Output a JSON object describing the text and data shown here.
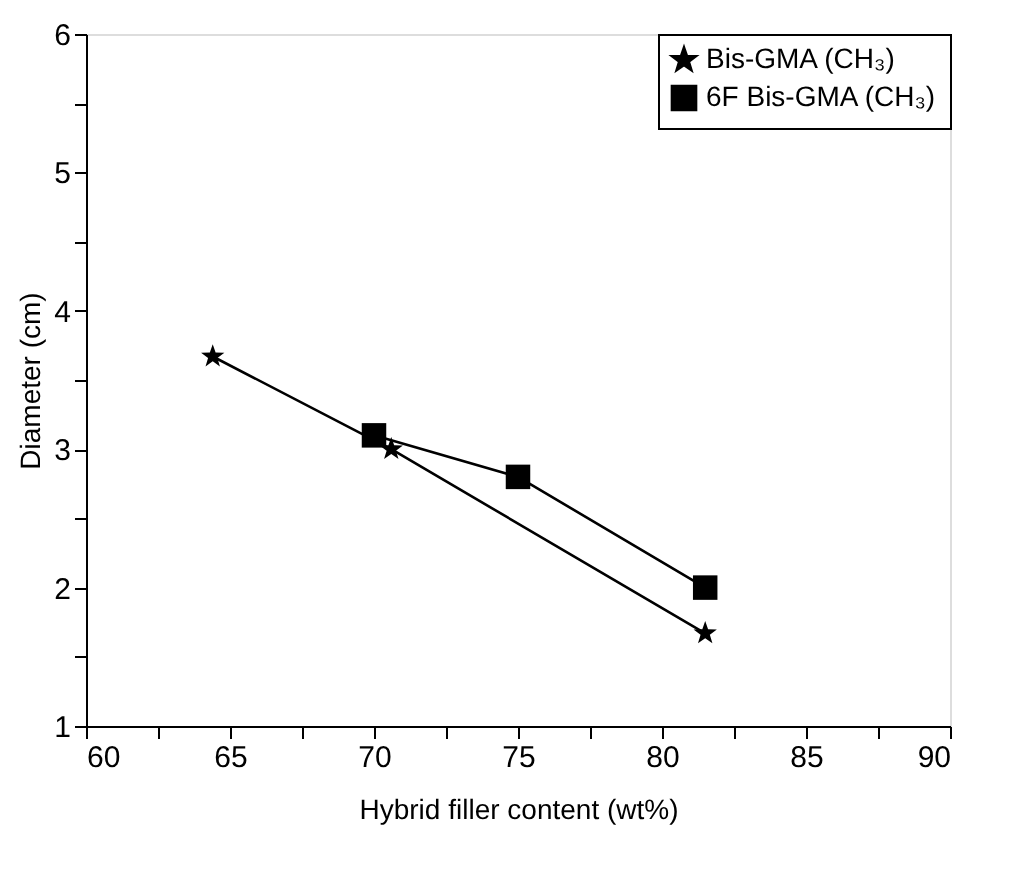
{
  "chart_data": {
    "type": "line",
    "xlabel": "Hybrid filler content (wt%)",
    "ylabel": "Diameter (cm)",
    "xlim": [
      60,
      90
    ],
    "ylim": [
      1,
      6
    ],
    "xticks": [
      60,
      {
        "value": 62.5,
        "label": null
      },
      65,
      {
        "value": 67.5,
        "label": null
      },
      70,
      {
        "value": 72.5,
        "label": null
      },
      75,
      {
        "value": 77.5,
        "label": null
      },
      80,
      {
        "value": 82.5,
        "label": null
      },
      85,
      {
        "value": 87.5,
        "label": null
      },
      90
    ],
    "yticks": [
      1,
      {
        "value": 1.5,
        "label": null
      },
      2,
      {
        "value": 2.5,
        "label": null
      },
      3,
      {
        "value": 3.5,
        "label": null
      },
      4,
      {
        "value": 4.5,
        "label": null
      },
      5,
      {
        "value": 5.5,
        "label": null
      },
      6
    ],
    "grid": false,
    "legend": "top right",
    "line_style": "solid",
    "series": [
      {
        "name": "Bis-GMA (CH₃)",
        "color": "#000000",
        "marker": "star",
        "x": [
          64.4,
          70.6,
          81.5
        ],
        "values": [
          3.67,
          3.0,
          1.67
        ]
      },
      {
        "name": "6F Bis-GMA (CH₃)",
        "color": "#000000",
        "marker": "square",
        "x": [
          70,
          75,
          81.5
        ],
        "values": [
          3.1,
          2.8,
          2.0
        ]
      }
    ]
  }
}
